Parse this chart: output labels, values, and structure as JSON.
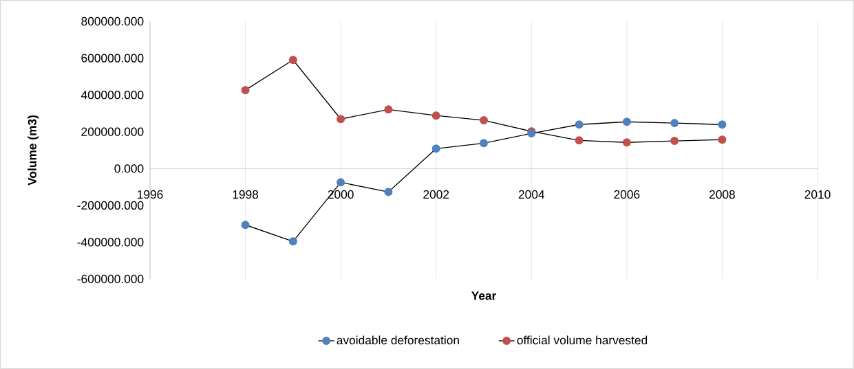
{
  "chart_data": {
    "type": "line",
    "xlabel": "Year",
    "ylabel": "Volume (m3)",
    "x": [
      1998,
      1999,
      2000,
      2001,
      2002,
      2003,
      2004,
      2005,
      2006,
      2007,
      2008
    ],
    "series": [
      {
        "name": "avoidable deforestation",
        "color": "#4f81bd",
        "values": [
          -306000,
          -396000,
          -75000,
          -127000,
          108000,
          138000,
          191000,
          239000,
          254000,
          247000,
          239000
        ]
      },
      {
        "name": "official volume harvested",
        "color": "#c0504d",
        "values": [
          426000,
          590000,
          269000,
          321000,
          288000,
          262000,
          202000,
          153000,
          142000,
          150000,
          157000
        ]
      }
    ],
    "xlim": [
      1996,
      2010
    ],
    "xticks": [
      1996,
      1998,
      2000,
      2002,
      2004,
      2006,
      2008,
      2010
    ],
    "ylim": [
      -600000,
      800000
    ],
    "yticks": [
      {
        "value": -600000,
        "label": "-600000.000"
      },
      {
        "value": -400000,
        "label": "-400000.000"
      },
      {
        "value": -200000,
        "label": "-200000.000"
      },
      {
        "value": 0,
        "label": "0.000"
      },
      {
        "value": 200000,
        "label": "200000.000"
      },
      {
        "value": 400000,
        "label": "400000.000"
      },
      {
        "value": 600000,
        "label": "600000.000"
      },
      {
        "value": 800000,
        "label": "800000.000"
      }
    ],
    "grid": "x",
    "legend": "bottom",
    "marker": "circle",
    "line_style": "solid"
  }
}
